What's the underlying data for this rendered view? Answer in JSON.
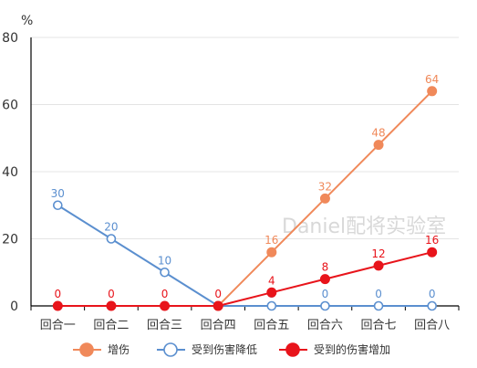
{
  "watermark": "Daniel配将实验室",
  "chart_data": {
    "type": "line",
    "title": "",
    "xlabel": "",
    "ylabel": "%",
    "ylim": [
      0,
      80
    ],
    "yticks": [
      0,
      20,
      40,
      60,
      80
    ],
    "grid": true,
    "legend_position": "bottom",
    "categories": [
      "回合一",
      "回合二",
      "回合三",
      "回合四",
      "回合五",
      "回合六",
      "回合七",
      "回合八"
    ],
    "series": [
      {
        "name": "增伤",
        "color": "#f0895a",
        "marker": "filled-circle",
        "values": [
          null,
          null,
          null,
          0,
          16,
          32,
          48,
          64
        ],
        "labels": [
          null,
          null,
          null,
          null,
          "16",
          "32",
          "48",
          "64"
        ]
      },
      {
        "name": "受到伤害降低",
        "color": "#5b8fcf",
        "marker": "hollow-circle",
        "values": [
          30,
          20,
          10,
          0,
          0,
          0,
          0,
          0
        ],
        "labels": [
          "30",
          "20",
          "10",
          null,
          "0",
          "0",
          "0",
          "0"
        ]
      },
      {
        "name": "受到的伤害增加",
        "color": "#e8141b",
        "marker": "filled-circle",
        "values": [
          0,
          0,
          0,
          0,
          4,
          8,
          12,
          16
        ],
        "labels": [
          "0",
          "0",
          "0",
          "0",
          "4",
          "8",
          "12",
          "16"
        ]
      }
    ]
  }
}
